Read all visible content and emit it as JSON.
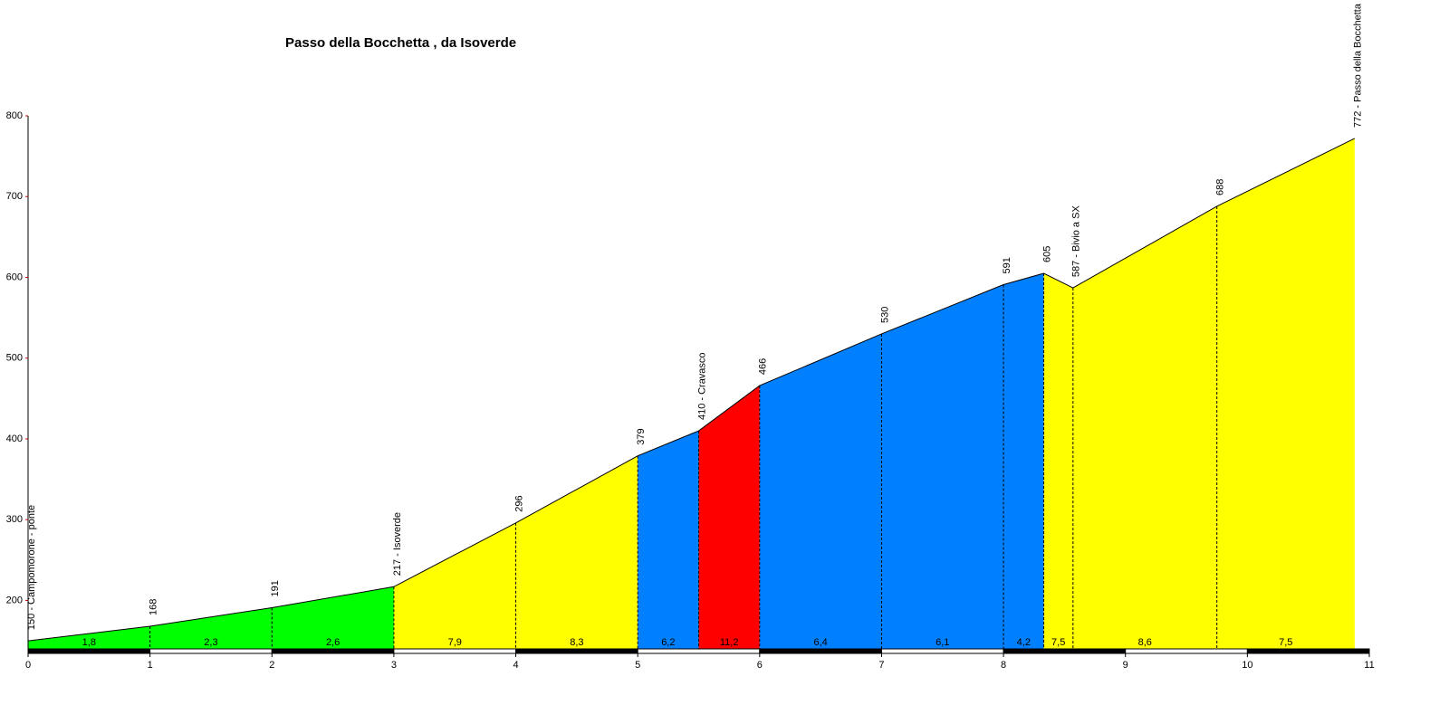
{
  "chart_data": {
    "type": "area",
    "title": "Passo della Bocchetta , da Isoverde",
    "x": [
      0,
      1,
      2,
      3,
      4,
      5,
      5.5,
      6,
      7,
      8,
      8.33,
      8.57,
      9.75,
      10.88
    ],
    "values": [
      150,
      168,
      191,
      217,
      296,
      379,
      410,
      466,
      530,
      591,
      605,
      587,
      688,
      772
    ],
    "value_labels": [
      "150 - Campomorone - ponte",
      "168",
      "191",
      "217 - Isoverde",
      "296",
      "379",
      "410 - Cravasco",
      "466",
      "530",
      "591",
      "605",
      "587 - Bivio a SX",
      "688",
      "772 - Passo della Bocchetta"
    ],
    "segments": {
      "values": [
        1.8,
        2.3,
        2.6,
        7.9,
        8.3,
        6.2,
        11.2,
        6.4,
        6.1,
        4.2,
        7.5,
        8.6,
        7.5
      ],
      "value_labels": [
        "1,8",
        "2,3",
        "2,6",
        "7,9",
        "8,3",
        "6,2",
        "11,2",
        "6,4",
        "6,1",
        "4,2",
        "7,5",
        "8,6",
        "7,5"
      ],
      "colors": [
        "#00ff00",
        "#00ff00",
        "#00ff00",
        "#ffff00",
        "#ffff00",
        "#0080ff",
        "#ff0000",
        "#0080ff",
        "#0080ff",
        "#0080ff",
        "#ffff00",
        "#ffff00",
        "#ffff00"
      ]
    },
    "xlim": [
      0,
      11
    ],
    "xticks": [
      0,
      1,
      2,
      3,
      4,
      5,
      6,
      7,
      8,
      9,
      10,
      11
    ],
    "ylim": [
      140,
      800
    ],
    "yticks": [
      200,
      300,
      400,
      500,
      600,
      700,
      800
    ]
  }
}
